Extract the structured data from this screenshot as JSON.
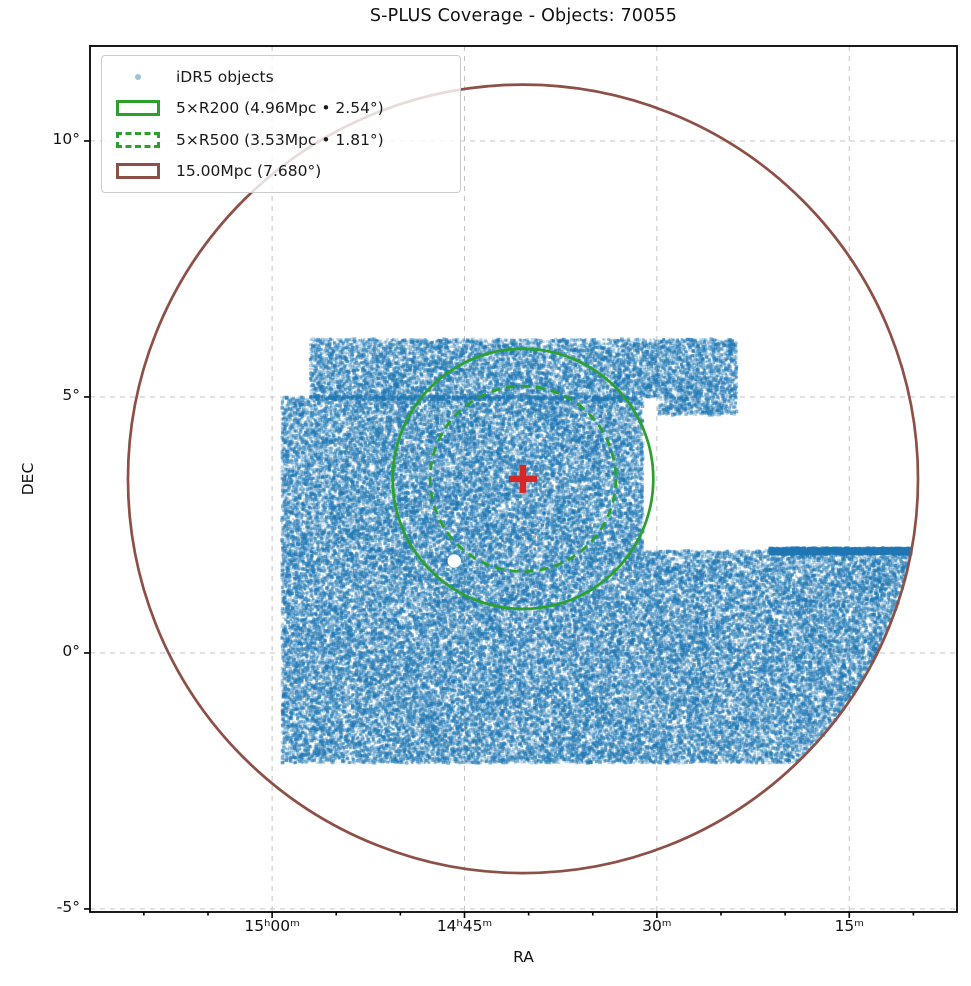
{
  "title": "S-PLUS Coverage - Objects: 70055",
  "object_count": 70055,
  "axes": {
    "xlabel": "RA",
    "ylabel": "DEC",
    "x_ticks": [
      {
        "ra_deg": 225.0,
        "label": "15ʰ00ᵐ"
      },
      {
        "ra_deg": 221.25,
        "label": "14ʰ45ᵐ"
      },
      {
        "ra_deg": 217.5,
        "label": "30ᵐ"
      },
      {
        "ra_deg": 213.75,
        "label": "15ᵐ"
      }
    ],
    "x_minor_ticks_deg": [
      227.5,
      226.25,
      223.75,
      222.5,
      220.0,
      218.75,
      216.25,
      215.0,
      212.5
    ],
    "y_ticks": [
      {
        "dec_deg": 10,
        "label": "10°"
      },
      {
        "dec_deg": 5,
        "label": "5°"
      },
      {
        "dec_deg": 0,
        "label": "0°"
      },
      {
        "dec_deg": -5,
        "label": "-5°"
      }
    ],
    "x_range_deg": [
      228.55,
      211.65
    ],
    "y_range_deg": [
      11.855,
      -5.06
    ]
  },
  "legend": {
    "items": [
      {
        "label": "iDR5 objects",
        "marker": "dot",
        "color": "#1f77b4"
      },
      {
        "label": "5×R200 (4.96Mpc • 2.54°)",
        "marker": "rect-solid",
        "color": "#2ca02c"
      },
      {
        "label": "5×R500 (3.53Mpc • 1.81°)",
        "marker": "rect-dashed",
        "color": "#2ca02c"
      },
      {
        "label": "15.00Mpc (7.680°)",
        "marker": "rect-solid",
        "color": "#8d5047"
      }
    ]
  },
  "chart_data": {
    "type": "scatter",
    "title": "S-PLUS Coverage - Objects: 70055",
    "xlabel": "RA",
    "ylabel": "DEC",
    "grid": true,
    "legend_position": "upper left",
    "series": [
      {
        "name": "iDR5 objects",
        "count": 70055,
        "color": "#1f77b4",
        "point_alpha": 0.3,
        "footprint_blocks_deg": [
          {
            "name": "north-strip",
            "ra": [
              215.94,
              224.26
            ],
            "dec": [
              5.0,
              6.13
            ]
          },
          {
            "name": "north-east-notch",
            "ra": [
              215.94,
              217.48
            ],
            "dec": [
              4.65,
              5.0
            ]
          },
          {
            "name": "central-block",
            "ra": [
              217.77,
              224.81
            ],
            "dec": [
              2.0,
              5.0
            ]
          },
          {
            "name": "south-block",
            "ra": [
              212.55,
              224.81
            ],
            "dec": [
              -2.15,
              2.0
            ],
            "clip_to_circle": true
          }
        ],
        "dense_strip": {
          "ra": [
            212.55,
            215.3
          ],
          "dec": [
            1.93,
            2.05
          ]
        },
        "seam_strip": {
          "ra": [
            217.9,
            224.26
          ],
          "dec": [
            4.94,
            5.02
          ]
        },
        "hole": {
          "ra_deg": 221.45,
          "dec_deg": 1.795,
          "radius_deg": 0.13
        }
      }
    ],
    "center_marker": {
      "ra_deg": 220.11,
      "dec_deg": 3.4,
      "marker": "plus",
      "color": "#d62728"
    },
    "circles": [
      {
        "name": "5xR200",
        "label": "5×R200 (4.96Mpc • 2.54°)",
        "radius_deg": 2.54,
        "radius_mpc": 4.96,
        "style": "solid",
        "color": "#2ca02c"
      },
      {
        "name": "5xR500",
        "label": "5×R500 (3.53Mpc • 1.81°)",
        "radius_deg": 1.81,
        "radius_mpc": 3.53,
        "style": "dashed",
        "color": "#2ca02c"
      },
      {
        "name": "15Mpc",
        "label": "15.00Mpc (7.680°)",
        "radius_deg": 7.7,
        "radius_mpc": 15.0,
        "style": "solid",
        "color": "#8d5047"
      }
    ],
    "colors": {
      "scatter": "#1f77b4",
      "green_circle": "#2ca02c",
      "brown_circle": "#8d5047",
      "center_cross": "#d62728",
      "grid": "#c4c4c4",
      "spine": "#000000"
    }
  }
}
